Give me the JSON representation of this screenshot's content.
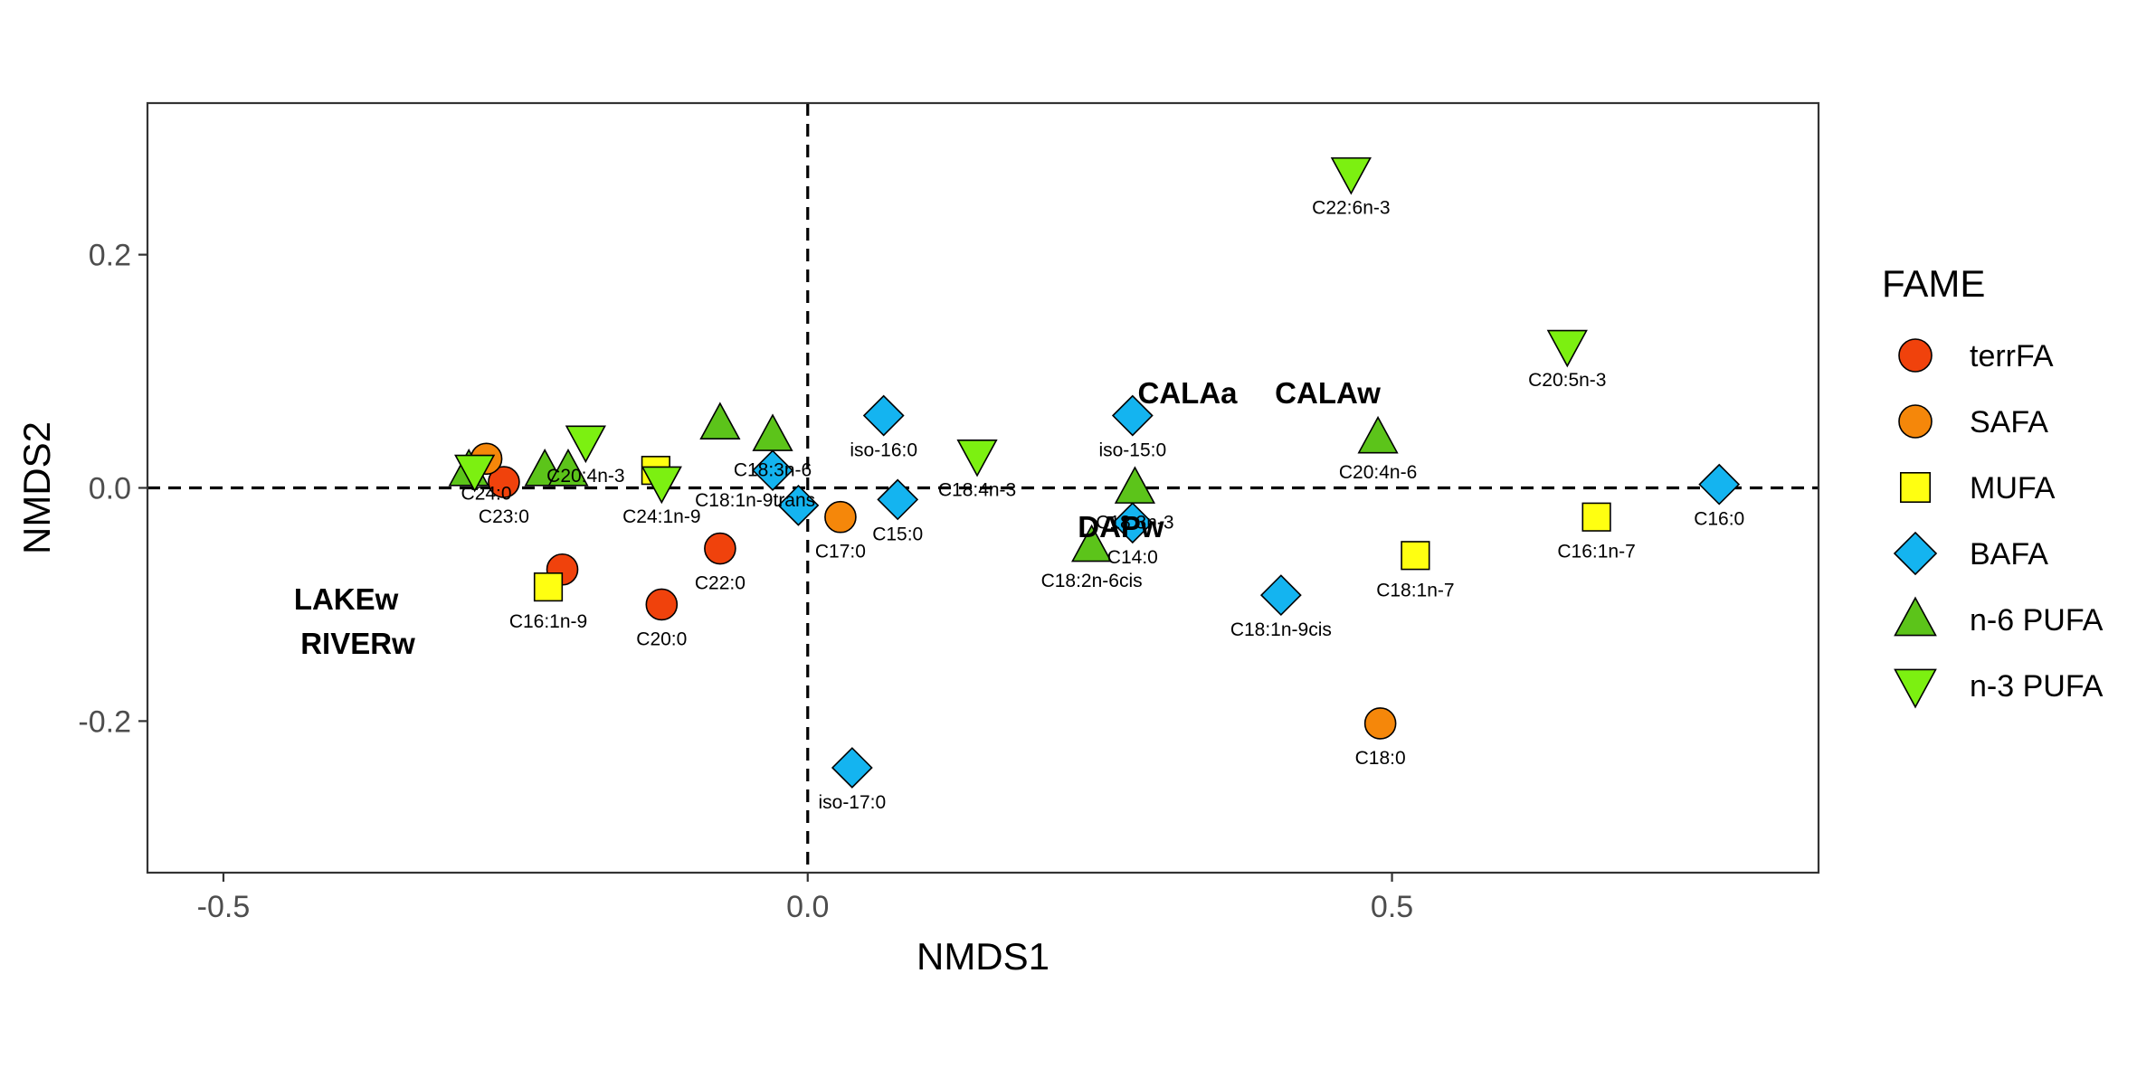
{
  "chart_data": {
    "type": "scatter",
    "xlabel": "NMDS1",
    "ylabel": "NMDS2",
    "xlim": [
      -0.565,
      0.865
    ],
    "ylim": [
      -0.33,
      0.33
    ],
    "x_ticks": [
      -0.5,
      0.0,
      0.5
    ],
    "x_tick_labels": [
      "-0.5",
      "0.0",
      "0.5"
    ],
    "y_ticks": [
      -0.2,
      0.0,
      0.2
    ],
    "y_tick_labels": [
      "-0.2",
      "0.0",
      "0.2"
    ],
    "reference_lines": {
      "x": 0,
      "y": 0,
      "style": "dashed"
    },
    "grid": false,
    "legend": {
      "title": "FAME",
      "position": "right",
      "entries": [
        {
          "name": "terrFA",
          "shape": "circle",
          "color": "#F0420C"
        },
        {
          "name": "SAFA",
          "shape": "circle",
          "color": "#F5870A"
        },
        {
          "name": "MUFA",
          "shape": "square",
          "color": "#FFFF11"
        },
        {
          "name": "BAFA",
          "shape": "diamond",
          "color": "#14B4F0"
        },
        {
          "name": "n-6 PUFA",
          "shape": "triangle-up",
          "color": "#5CC41A"
        },
        {
          "name": "n-3 PUFA",
          "shape": "triangle-down",
          "color": "#7CF011"
        }
      ]
    },
    "series": [
      {
        "name": "terrFA",
        "points": [
          {
            "x": -0.26,
            "y": 0.005,
            "label": "C23:0"
          },
          {
            "x": -0.21,
            "y": -0.07,
            "label": ""
          },
          {
            "x": -0.125,
            "y": -0.1,
            "label": "C20:0"
          },
          {
            "x": -0.075,
            "y": -0.052,
            "label": "C22:0"
          }
        ]
      },
      {
        "name": "SAFA",
        "points": [
          {
            "x": -0.275,
            "y": 0.025,
            "label": "C24:0"
          },
          {
            "x": 0.028,
            "y": -0.025,
            "label": "C17:0"
          },
          {
            "x": 0.49,
            "y": -0.202,
            "label": "C18:0"
          }
        ]
      },
      {
        "name": "MUFA",
        "points": [
          {
            "x": -0.13,
            "y": 0.015,
            "label": ""
          },
          {
            "x": -0.222,
            "y": -0.085,
            "label": "C16:1n-9"
          },
          {
            "x": 0.52,
            "y": -0.058,
            "label": "C18:1n-7"
          },
          {
            "x": 0.675,
            "y": -0.025,
            "label": "C16:1n-7"
          }
        ]
      },
      {
        "name": "BAFA",
        "points": [
          {
            "x": 0.065,
            "y": 0.062,
            "label": "iso-16:0"
          },
          {
            "x": -0.03,
            "y": 0.015,
            "label": ""
          },
          {
            "x": -0.008,
            "y": -0.015,
            "label": ""
          },
          {
            "x": 0.077,
            "y": -0.01,
            "label": "C15:0"
          },
          {
            "x": 0.278,
            "y": 0.062,
            "label": "iso-15:0"
          },
          {
            "x": 0.278,
            "y": -0.03,
            "label": "C14:0"
          },
          {
            "x": 0.405,
            "y": -0.092,
            "label": "C18:1n-9cis"
          },
          {
            "x": 0.78,
            "y": 0.003,
            "label": "C16:0"
          },
          {
            "x": 0.038,
            "y": -0.24,
            "label": "iso-17:0"
          }
        ]
      },
      {
        "name": "n-6 PUFA",
        "points": [
          {
            "x": -0.29,
            "y": 0.015,
            "label": ""
          },
          {
            "x": -0.225,
            "y": 0.015,
            "label": ""
          },
          {
            "x": -0.205,
            "y": 0.015,
            "label": ""
          },
          {
            "x": -0.075,
            "y": 0.055,
            "label": ""
          },
          {
            "x": -0.03,
            "y": 0.045,
            "label": "C18:3n-6"
          },
          {
            "x": 0.28,
            "y": 0.0,
            "label": "C18:3n-3"
          },
          {
            "x": 0.243,
            "y": -0.05,
            "label": "C18:2n-6cis"
          },
          {
            "x": 0.488,
            "y": 0.043,
            "label": "C20:4n-6"
          }
        ]
      },
      {
        "name": "n-3 PUFA",
        "points": [
          {
            "x": -0.285,
            "y": 0.015,
            "label": ""
          },
          {
            "x": -0.19,
            "y": 0.04,
            "label": "C20:4n-3"
          },
          {
            "x": -0.125,
            "y": 0.005,
            "label": "C24:1n-9"
          },
          {
            "x": 0.145,
            "y": 0.028,
            "label": "C18:4n-3"
          },
          {
            "x": 0.465,
            "y": 0.27,
            "label": "C22:6n-3"
          },
          {
            "x": 0.65,
            "y": 0.122,
            "label": "C20:5n-3"
          }
        ]
      }
    ],
    "extra_labels": [
      {
        "text": "C18:1n-9trans",
        "x": -0.045,
        "y": -0.005
      }
    ],
    "site_labels": [
      {
        "text": "CALAa",
        "x": 0.325,
        "y": 0.082
      },
      {
        "text": "CALAw",
        "x": 0.445,
        "y": 0.082
      },
      {
        "text": "DAPw",
        "x": 0.268,
        "y": -0.033
      },
      {
        "text": "LAKEw",
        "x": -0.395,
        "y": -0.095
      },
      {
        "text": "RIVERw",
        "x": -0.385,
        "y": -0.133
      }
    ]
  }
}
